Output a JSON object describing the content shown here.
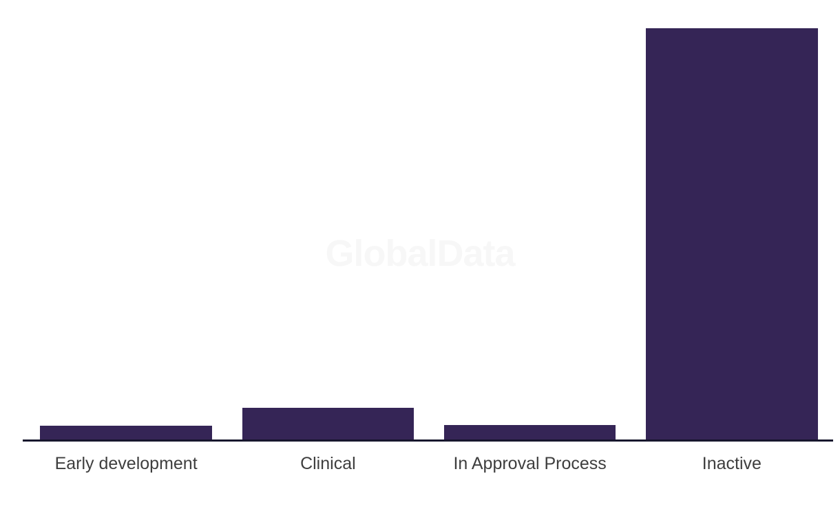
{
  "chart_data": {
    "type": "bar",
    "title": "",
    "categories": [
      "Early development",
      "Clinical",
      "In Approval Process",
      "Inactive"
    ],
    "values": [
      22,
      48,
      23,
      599
    ],
    "xlabel": "",
    "ylabel": "",
    "ylim": [
      0,
      625
    ],
    "y_axis_visible": false,
    "grid": false,
    "legend": false,
    "bar_color": "#352556",
    "axis_line_color": "#17162D",
    "label_color": "#3E3E3E",
    "background_color": "#FFFFFF",
    "watermark": {
      "text": "GlobalData",
      "color": "#F7F7F7"
    }
  }
}
